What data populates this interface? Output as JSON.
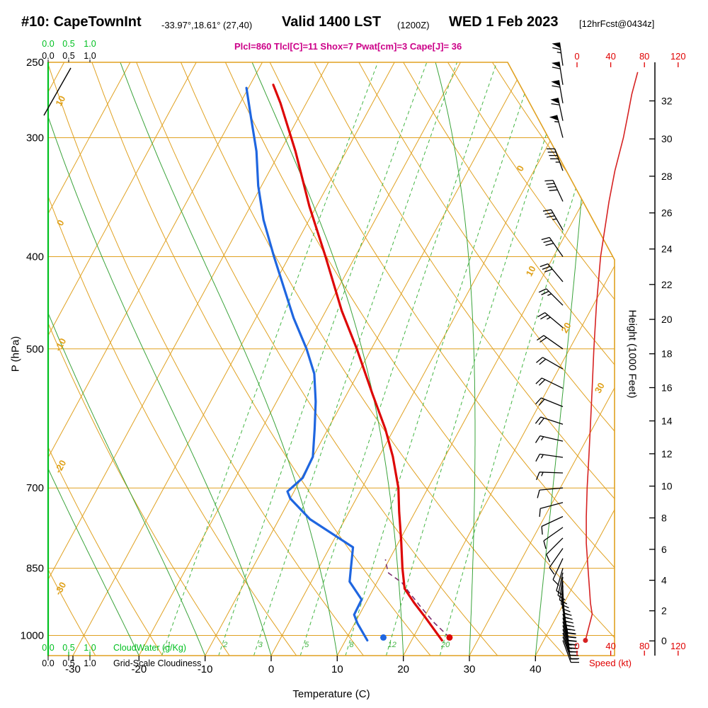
{
  "header": {
    "station_title": "#10: CapeTownInt",
    "coords": "-33.97°,18.61° (27,40)",
    "valid_main": "Valid 1400 LST",
    "valid_z": "(1200Z)",
    "valid_date": "WED 1 Feb 2023",
    "fcst_tag": "[12hrFcst@0434z]",
    "stats": "Plcl=860 Tlcl[C]=11 Shox=7 Pwat[cm]=3 Cape[J]= 36"
  },
  "axes": {
    "pressure_label": "P (hPa)",
    "pressure_ticks": [
      250,
      300,
      400,
      500,
      700,
      850,
      1000
    ],
    "temp_label": "Temperature (C)",
    "temp_ticks": [
      -30,
      -20,
      -10,
      0,
      10,
      20,
      30,
      40
    ],
    "height_label": "Height (1000 Feet)",
    "height_ticks": [
      0,
      2,
      4,
      6,
      8,
      10,
      12,
      14,
      16,
      18,
      20,
      22,
      24,
      26,
      28,
      30,
      32
    ],
    "speed_label": "Speed (kt)",
    "speed_ticks": [
      0,
      40,
      80,
      120
    ],
    "cloud_scale": [
      "0.0",
      "0.5",
      "1.0"
    ],
    "cloudwater_label": "CloudWater (g/Kg)",
    "cloudiness_label": "Grid-Scale Cloudiness",
    "isotherm_labels_left": [
      "10",
      "0",
      "-10",
      "-20",
      "-30"
    ],
    "isotherm_labels_right": [
      "0",
      "10",
      "20",
      "30"
    ]
  },
  "chart_data": {
    "type": "skewt-logp",
    "pressure_range": [
      250,
      1050
    ],
    "isotherm_range": [
      -90,
      40,
      10
    ],
    "dry_adiabat_theta_range": [
      -40,
      190,
      10
    ],
    "moist_adiabat_start_temps": [
      -20,
      -10,
      0,
      10,
      20,
      30,
      40
    ],
    "mixing_ratio_lines": [
      1,
      2,
      3,
      5,
      8,
      12,
      20
    ],
    "temperature_profile": [
      [
        1012,
        24.6
      ],
      [
        955,
        20.0
      ],
      [
        924,
        17.3
      ],
      [
        893,
        14.7
      ],
      [
        850,
        12.7
      ],
      [
        794,
        10.2
      ],
      [
        742,
        7.6
      ],
      [
        700,
        5.5
      ],
      [
        649,
        2.1
      ],
      [
        607,
        -1.3
      ],
      [
        558,
        -6.1
      ],
      [
        500,
        -12.2
      ],
      [
        456,
        -17.6
      ],
      [
        400,
        -24.5
      ],
      [
        354,
        -31.1
      ],
      [
        310,
        -37.7
      ],
      [
        276,
        -43.9
      ],
      [
        264,
        -46.5
      ]
    ],
    "dewpoint_profile": [
      [
        1012,
        13.3
      ],
      [
        971,
        10.4
      ],
      [
        951,
        9.2
      ],
      [
        917,
        9.1
      ],
      [
        878,
        5.8
      ],
      [
        850,
        4.9
      ],
      [
        808,
        3.5
      ],
      [
        755,
        -5.3
      ],
      [
        718,
        -10.0
      ],
      [
        706,
        -11.0
      ],
      [
        683,
        -9.8
      ],
      [
        649,
        -10.0
      ],
      [
        607,
        -12.0
      ],
      [
        568,
        -14.1
      ],
      [
        531,
        -16.6
      ],
      [
        500,
        -19.8
      ],
      [
        464,
        -24.3
      ],
      [
        434,
        -27.9
      ],
      [
        400,
        -32.3
      ],
      [
        366,
        -36.9
      ],
      [
        337,
        -40.5
      ],
      [
        310,
        -43.6
      ],
      [
        285,
        -47.3
      ],
      [
        266,
        -50.3
      ]
    ],
    "parcel_path": [
      [
        1005,
        25.5
      ],
      [
        970,
        22.0
      ],
      [
        935,
        18.8
      ],
      [
        900,
        15.6
      ],
      [
        880,
        13.8
      ],
      [
        860,
        11.0
      ],
      [
        845,
        10.1
      ],
      [
        832,
        9.4
      ]
    ],
    "surface_temp_dot": {
      "p": 1005,
      "t": 25.5
    },
    "surface_dewpoint_dot": {
      "p": 1005,
      "t": 15.5
    },
    "wind_barbs": [
      [
        1012,
        160,
        20
      ],
      [
        1003,
        160,
        25
      ],
      [
        994,
        162,
        25
      ],
      [
        985,
        163,
        25
      ],
      [
        976,
        164,
        20
      ],
      [
        967,
        165,
        20
      ],
      [
        958,
        166,
        20
      ],
      [
        949,
        167,
        20
      ],
      [
        940,
        168,
        15
      ],
      [
        931,
        170,
        15
      ],
      [
        922,
        172,
        15
      ],
      [
        913,
        174,
        15
      ],
      [
        904,
        176,
        15
      ],
      [
        895,
        178,
        10
      ],
      [
        886,
        181,
        10
      ],
      [
        877,
        184,
        10
      ],
      [
        868,
        188,
        10
      ],
      [
        859,
        192,
        10
      ],
      [
        850,
        196,
        10
      ],
      [
        830,
        205,
        8
      ],
      [
        810,
        215,
        8
      ],
      [
        790,
        225,
        8
      ],
      [
        770,
        235,
        8
      ],
      [
        750,
        245,
        10
      ],
      [
        725,
        255,
        10
      ],
      [
        700,
        265,
        12
      ],
      [
        675,
        272,
        14
      ],
      [
        650,
        278,
        15
      ],
      [
        625,
        283,
        16
      ],
      [
        600,
        288,
        18
      ],
      [
        575,
        292,
        18
      ],
      [
        550,
        296,
        20
      ],
      [
        525,
        300,
        20
      ],
      [
        500,
        305,
        22
      ],
      [
        475,
        310,
        24
      ],
      [
        450,
        315,
        25
      ],
      [
        425,
        320,
        28
      ],
      [
        400,
        325,
        30
      ],
      [
        375,
        330,
        35
      ],
      [
        350,
        335,
        40
      ],
      [
        325,
        340,
        45
      ],
      [
        300,
        345,
        55
      ],
      [
        288,
        348,
        58
      ],
      [
        276,
        350,
        60
      ],
      [
        264,
        351,
        62
      ],
      [
        252,
        352,
        65
      ]
    ],
    "wind_speed_profile": [
      [
        1012,
        10
      ],
      [
        980,
        14
      ],
      [
        950,
        18
      ],
      [
        925,
        16
      ],
      [
        900,
        15
      ],
      [
        850,
        13
      ],
      [
        800,
        11
      ],
      [
        750,
        11
      ],
      [
        700,
        12
      ],
      [
        650,
        14
      ],
      [
        600,
        16
      ],
      [
        550,
        18
      ],
      [
        500,
        20
      ],
      [
        450,
        23
      ],
      [
        400,
        28
      ],
      [
        350,
        38
      ],
      [
        325,
        45
      ],
      [
        300,
        55
      ],
      [
        285,
        60
      ],
      [
        270,
        65
      ],
      [
        256,
        72
      ]
    ],
    "colors": {
      "grid": "#e0a121",
      "moist_adiabat": "#3aa33a",
      "mixing_ratio": "#44b544",
      "cloud_axis": "#00c020",
      "temperature": "#dd0707",
      "dewpoint": "#1f66e0",
      "parcel": "#7a3070",
      "wind_speed": "#d62222",
      "scale_red": "#e00000",
      "stats_text": "#cc0088",
      "label_orange": "#dfa018"
    }
  }
}
